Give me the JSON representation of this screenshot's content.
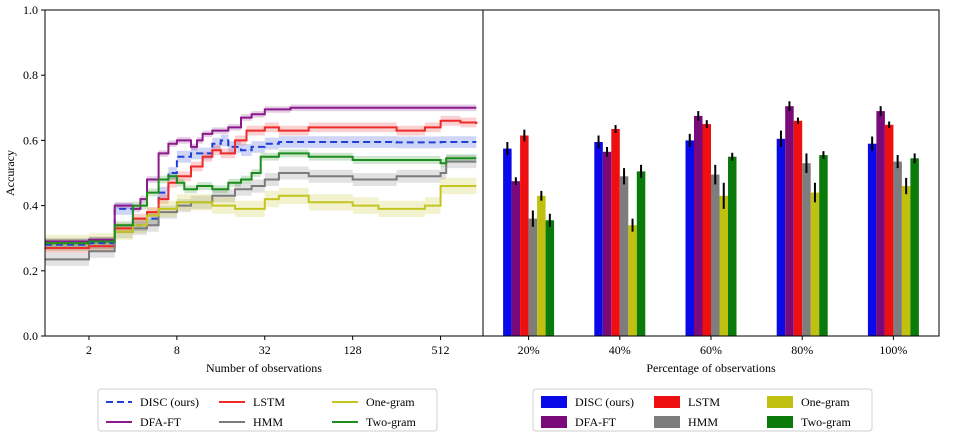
{
  "chart_data": [
    {
      "type": "line",
      "ylabel": "Accuracy",
      "xlabel": "Number of observations",
      "xscale": "log2",
      "xlim": [
        1,
        1000
      ],
      "ylim": [
        0,
        1
      ],
      "xticks": [
        {
          "value": 2,
          "label": "2"
        },
        {
          "value": 8,
          "label": "8"
        },
        {
          "value": 32,
          "label": "32"
        },
        {
          "value": 128,
          "label": "128"
        },
        {
          "value": 512,
          "label": "512"
        }
      ],
      "yticks": [
        {
          "value": 0.0,
          "label": "0.0"
        },
        {
          "value": 0.2,
          "label": "0.2"
        },
        {
          "value": 0.4,
          "label": "0.4"
        },
        {
          "value": 0.6,
          "label": "0.6"
        },
        {
          "value": 0.8,
          "label": "0.8"
        },
        {
          "value": 1.0,
          "label": "1.0"
        }
      ],
      "series": [
        {
          "name": "DISC (ours)",
          "color": "#1f3fd8",
          "dashed": true,
          "band": 0.018,
          "points": [
            [
              1,
              0.28
            ],
            [
              2,
              0.285
            ],
            [
              3,
              0.39
            ],
            [
              3.6,
              0.39
            ],
            [
              4,
              0.34
            ],
            [
              5,
              0.36
            ],
            [
              6,
              0.44
            ],
            [
              7,
              0.5
            ],
            [
              8,
              0.55
            ],
            [
              10,
              0.56
            ],
            [
              12,
              0.56
            ],
            [
              14,
              0.59
            ],
            [
              16,
              0.6
            ],
            [
              18,
              0.58
            ],
            [
              22,
              0.57
            ],
            [
              26,
              0.58
            ],
            [
              32,
              0.59
            ],
            [
              40,
              0.595
            ],
            [
              64,
              0.595
            ],
            [
              128,
              0.595
            ],
            [
              256,
              0.594
            ],
            [
              512,
              0.595
            ],
            [
              900,
              0.595
            ]
          ]
        },
        {
          "name": "DFA-FT",
          "color": "#8b1a8b",
          "dashed": false,
          "band": 0.01,
          "points": [
            [
              1,
              0.29
            ],
            [
              2,
              0.295
            ],
            [
              3,
              0.4
            ],
            [
              3.6,
              0.4
            ],
            [
              4,
              0.39
            ],
            [
              4.5,
              0.42
            ],
            [
              5,
              0.48
            ],
            [
              6,
              0.56
            ],
            [
              7,
              0.59
            ],
            [
              8,
              0.6
            ],
            [
              10,
              0.58
            ],
            [
              11,
              0.6
            ],
            [
              12,
              0.62
            ],
            [
              14,
              0.63
            ],
            [
              18,
              0.64
            ],
            [
              22,
              0.67
            ],
            [
              26,
              0.68
            ],
            [
              32,
              0.695
            ],
            [
              48,
              0.7
            ],
            [
              64,
              0.7
            ],
            [
              128,
              0.7
            ],
            [
              256,
              0.7
            ],
            [
              512,
              0.7
            ],
            [
              900,
              0.7
            ]
          ]
        },
        {
          "name": "LSTM",
          "color": "#ee2a2a",
          "dashed": false,
          "band": 0.015,
          "points": [
            [
              1,
              0.27
            ],
            [
              2,
              0.275
            ],
            [
              3,
              0.33
            ],
            [
              4,
              0.36
            ],
            [
              5,
              0.38
            ],
            [
              6,
              0.42
            ],
            [
              7,
              0.47
            ],
            [
              8,
              0.49
            ],
            [
              10,
              0.52
            ],
            [
              12,
              0.55
            ],
            [
              14,
              0.57
            ],
            [
              16,
              0.56
            ],
            [
              20,
              0.6
            ],
            [
              24,
              0.63
            ],
            [
              32,
              0.64
            ],
            [
              40,
              0.63
            ],
            [
              64,
              0.64
            ],
            [
              128,
              0.64
            ],
            [
              256,
              0.63
            ],
            [
              400,
              0.64
            ],
            [
              512,
              0.66
            ],
            [
              700,
              0.655
            ],
            [
              900,
              0.65
            ]
          ]
        },
        {
          "name": "HMM",
          "color": "#7c7c7c",
          "dashed": false,
          "band": 0.02,
          "points": [
            [
              1,
              0.235
            ],
            [
              2,
              0.26
            ],
            [
              3,
              0.32
            ],
            [
              4,
              0.33
            ],
            [
              5,
              0.34
            ],
            [
              6,
              0.38
            ],
            [
              8,
              0.4
            ],
            [
              10,
              0.41
            ],
            [
              14,
              0.43
            ],
            [
              20,
              0.45
            ],
            [
              26,
              0.46
            ],
            [
              32,
              0.48
            ],
            [
              40,
              0.5
            ],
            [
              64,
              0.49
            ],
            [
              128,
              0.48
            ],
            [
              256,
              0.49
            ],
            [
              512,
              0.5
            ],
            [
              560,
              0.535
            ],
            [
              900,
              0.535
            ]
          ]
        },
        {
          "name": "One-gram",
          "color": "#c5c520",
          "dashed": false,
          "band": 0.025,
          "points": [
            [
              1,
              0.285
            ],
            [
              2,
              0.29
            ],
            [
              3,
              0.32
            ],
            [
              4,
              0.34
            ],
            [
              5,
              0.37
            ],
            [
              6,
              0.39
            ],
            [
              8,
              0.41
            ],
            [
              10,
              0.41
            ],
            [
              14,
              0.4
            ],
            [
              20,
              0.39
            ],
            [
              26,
              0.39
            ],
            [
              32,
              0.42
            ],
            [
              40,
              0.43
            ],
            [
              64,
              0.41
            ],
            [
              128,
              0.4
            ],
            [
              192,
              0.39
            ],
            [
              256,
              0.39
            ],
            [
              400,
              0.4
            ],
            [
              512,
              0.46
            ],
            [
              900,
              0.46
            ]
          ]
        },
        {
          "name": "Two-gram",
          "color": "#1e8c1e",
          "dashed": false,
          "band": 0.012,
          "points": [
            [
              1,
              0.285
            ],
            [
              2,
              0.29
            ],
            [
              3,
              0.34
            ],
            [
              4,
              0.4
            ],
            [
              5,
              0.44
            ],
            [
              6,
              0.48
            ],
            [
              7,
              0.49
            ],
            [
              8,
              0.47
            ],
            [
              9,
              0.45
            ],
            [
              11,
              0.46
            ],
            [
              14,
              0.45
            ],
            [
              18,
              0.47
            ],
            [
              22,
              0.48
            ],
            [
              26,
              0.5
            ],
            [
              30,
              0.55
            ],
            [
              40,
              0.56
            ],
            [
              64,
              0.55
            ],
            [
              128,
              0.54
            ],
            [
              256,
              0.54
            ],
            [
              512,
              0.53
            ],
            [
              560,
              0.545
            ],
            [
              900,
              0.545
            ]
          ]
        }
      ],
      "legend": {
        "position": "below",
        "columns": 3,
        "order": [
          "DISC (ours)",
          "DFA-FT",
          "LSTM",
          "HMM",
          "One-gram",
          "Two-gram"
        ]
      }
    },
    {
      "type": "bar",
      "xlabel": "Percentage of observations",
      "ylim": [
        0,
        1
      ],
      "categories": [
        "20%",
        "40%",
        "60%",
        "80%",
        "100%"
      ],
      "series": [
        {
          "name": "DISC (ours)",
          "color": "#0a0ae8",
          "values": [
            0.575,
            0.595,
            0.6,
            0.605,
            0.59
          ],
          "errors": [
            0.02,
            0.02,
            0.02,
            0.025,
            0.022
          ]
        },
        {
          "name": "DFA-FT",
          "color": "#7a0a7a",
          "values": [
            0.475,
            0.565,
            0.675,
            0.705,
            0.69
          ],
          "errors": [
            0.012,
            0.015,
            0.015,
            0.015,
            0.015
          ]
        },
        {
          "name": "LSTM",
          "color": "#ee1010",
          "values": [
            0.615,
            0.635,
            0.65,
            0.66,
            0.648
          ],
          "errors": [
            0.018,
            0.012,
            0.012,
            0.01,
            0.01
          ]
        },
        {
          "name": "HMM",
          "color": "#7d7d7d",
          "values": [
            0.36,
            0.49,
            0.495,
            0.53,
            0.535
          ],
          "errors": [
            0.025,
            0.025,
            0.03,
            0.03,
            0.02
          ]
        },
        {
          "name": "One-gram",
          "color": "#c0c010",
          "values": [
            0.43,
            0.34,
            0.43,
            0.44,
            0.46
          ],
          "errors": [
            0.015,
            0.02,
            0.04,
            0.03,
            0.025
          ]
        },
        {
          "name": "Two-gram",
          "color": "#0a7a0a",
          "values": [
            0.355,
            0.505,
            0.55,
            0.555,
            0.545
          ],
          "errors": [
            0.02,
            0.02,
            0.012,
            0.012,
            0.015
          ]
        }
      ],
      "legend": {
        "position": "below",
        "columns": 3,
        "order": [
          "DISC (ours)",
          "DFA-FT",
          "LSTM",
          "HMM",
          "One-gram",
          "Two-gram"
        ]
      }
    }
  ]
}
